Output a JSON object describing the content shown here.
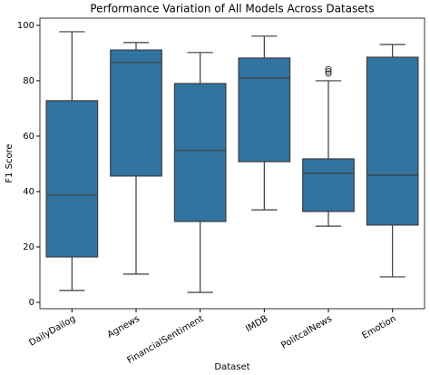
{
  "chart_data": {
    "type": "box",
    "title": "Performance Variation of All Models Across Datasets",
    "x_label": "Dataset",
    "y_label": "F1 Score",
    "categories": [
      "DailyDailog",
      "Agnews",
      "FinancialSentiment",
      "IMDB",
      "PolitcalNews",
      "Emotion"
    ],
    "boxes": [
      {
        "min": 4.3,
        "q1": 16.4,
        "median": 38.7,
        "q3": 72.8,
        "max": 97.7,
        "outliers": []
      },
      {
        "min": 10.2,
        "q1": 45.6,
        "median": 86.6,
        "q3": 91.1,
        "max": 93.8,
        "outliers": []
      },
      {
        "min": 3.6,
        "q1": 29.2,
        "median": 54.8,
        "q3": 79.0,
        "max": 90.2,
        "outliers": []
      },
      {
        "min": 33.4,
        "q1": 50.8,
        "median": 81.0,
        "q3": 88.2,
        "max": 96.1,
        "outliers": []
      },
      {
        "min": 27.5,
        "q1": 32.8,
        "median": 46.6,
        "q3": 51.8,
        "max": 80.0,
        "outliers": [
          82.6,
          83.4,
          84.2
        ]
      },
      {
        "min": 9.2,
        "q1": 27.9,
        "median": 45.9,
        "q3": 88.5,
        "max": 93.1,
        "outliers": []
      }
    ],
    "color": "#3274a1",
    "ylim": [
      -2.3,
      102.6
    ],
    "yticks": [
      0,
      20,
      40,
      60,
      80,
      100
    ]
  }
}
